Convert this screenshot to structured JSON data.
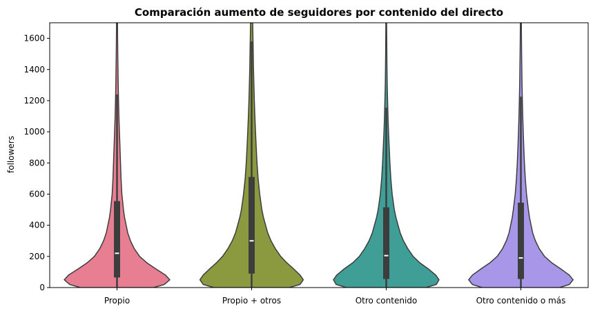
{
  "chart_data": {
    "type": "violin",
    "title": "Comparación aumento de seguidores por contenido del directo",
    "xlabel": "",
    "ylabel": "followers",
    "ylim": [
      0,
      1700
    ],
    "yticks": [
      0,
      200,
      400,
      600,
      800,
      1000,
      1200,
      1400,
      1600
    ],
    "grid": false,
    "categories": [
      "Propio",
      "Propio + otros",
      "Otro contenido",
      "Otro contenido o más"
    ],
    "colors": [
      "#e87e91",
      "#8b9a3e",
      "#3f9e96",
      "#a897e8"
    ],
    "box": [
      {
        "q1": 65,
        "median": 220,
        "q3": 555,
        "whisker_high": 1240
      },
      {
        "q1": 90,
        "median": 300,
        "q3": 710,
        "whisker_high": 1580
      },
      {
        "q1": 55,
        "median": 205,
        "q3": 515,
        "whisker_high": 1155
      },
      {
        "q1": 55,
        "median": 190,
        "q3": 545,
        "whisker_high": 1225
      }
    ],
    "density_profile": [
      {
        "y": [
          0,
          20,
          50,
          80,
          120,
          160,
          200,
          250,
          300,
          350,
          400,
          450,
          500,
          600,
          700,
          800,
          900,
          1000,
          1100,
          1200,
          1300,
          1400,
          1500,
          1600,
          1700
        ],
        "w": [
          0.68,
          0.88,
          0.98,
          0.9,
          0.72,
          0.55,
          0.42,
          0.32,
          0.25,
          0.2,
          0.17,
          0.14,
          0.12,
          0.09,
          0.075,
          0.065,
          0.055,
          0.045,
          0.035,
          0.028,
          0.022,
          0.018,
          0.014,
          0.011,
          0.009
        ]
      },
      {
        "y": [
          0,
          20,
          50,
          80,
          120,
          160,
          200,
          250,
          300,
          350,
          400,
          450,
          500,
          600,
          700,
          800,
          900,
          1000,
          1100,
          1200,
          1300,
          1400,
          1500,
          1600,
          1700
        ],
        "w": [
          0.7,
          0.9,
          0.96,
          0.9,
          0.78,
          0.65,
          0.54,
          0.44,
          0.36,
          0.3,
          0.26,
          0.22,
          0.19,
          0.15,
          0.12,
          0.1,
          0.085,
          0.072,
          0.06,
          0.05,
          0.042,
          0.035,
          0.03,
          0.025,
          0.02
        ]
      },
      {
        "y": [
          0,
          20,
          50,
          80,
          120,
          160,
          200,
          250,
          300,
          350,
          400,
          450,
          500,
          600,
          700,
          800,
          900,
          1000,
          1100,
          1200,
          1300,
          1400,
          1500,
          1600,
          1700
        ],
        "w": [
          0.74,
          0.93,
          0.98,
          0.92,
          0.78,
          0.62,
          0.5,
          0.4,
          0.32,
          0.26,
          0.22,
          0.18,
          0.15,
          0.11,
          0.085,
          0.068,
          0.055,
          0.042,
          0.032,
          0.025,
          0.018,
          0.014,
          0.011,
          0.009,
          0.007
        ]
      },
      {
        "y": [
          0,
          20,
          50,
          80,
          120,
          160,
          200,
          250,
          300,
          350,
          400,
          450,
          500,
          600,
          700,
          800,
          900,
          1000,
          1100,
          1200,
          1300,
          1400,
          1500,
          1600,
          1700
        ],
        "w": [
          0.72,
          0.9,
          0.97,
          0.9,
          0.74,
          0.57,
          0.44,
          0.34,
          0.27,
          0.22,
          0.19,
          0.16,
          0.14,
          0.105,
          0.082,
          0.066,
          0.054,
          0.044,
          0.035,
          0.028,
          0.022,
          0.018,
          0.014,
          0.011,
          0.009
        ]
      }
    ]
  }
}
